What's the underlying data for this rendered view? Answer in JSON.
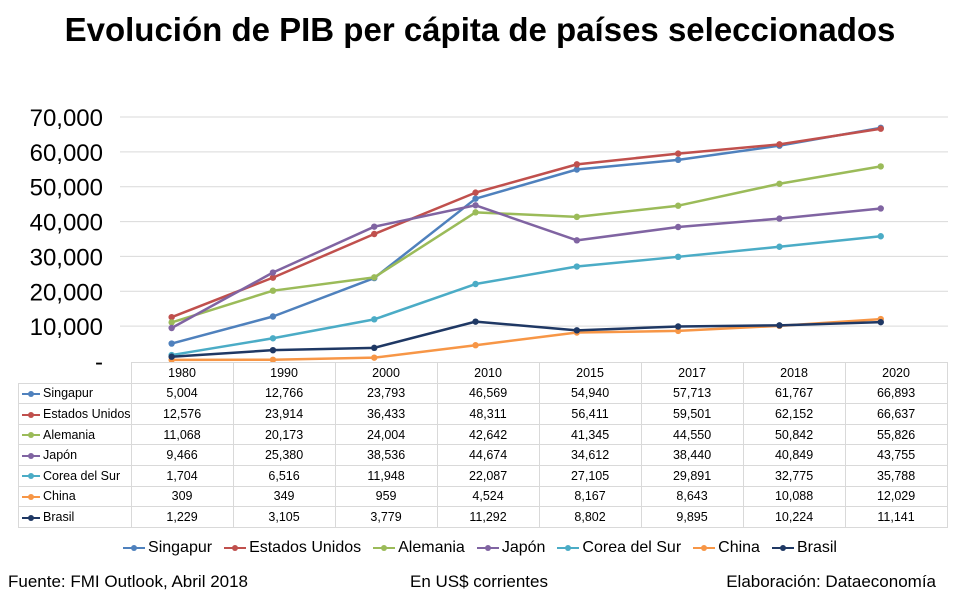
{
  "chart_data": {
    "type": "line",
    "title": "Evolución de PIB per cápita de países seleccionados",
    "categories": [
      "1980",
      "1990",
      "2000",
      "2010",
      "2015",
      "2017",
      "2018",
      "2020"
    ],
    "ylim": [
      0,
      70000
    ],
    "yticks": [
      0,
      10000,
      20000,
      30000,
      40000,
      50000,
      60000,
      70000
    ],
    "ytick_labels": [
      "-",
      "10,000",
      "20,000",
      "30,000",
      "40,000",
      "50,000",
      "60,000",
      "70,000"
    ],
    "grid": true,
    "legend_placement": "bottom",
    "series": [
      {
        "name": "Singapur",
        "color": "#4f81bd",
        "values": [
          5004,
          12766,
          23793,
          46569,
          54940,
          57713,
          61767,
          66893
        ],
        "labels": [
          "5,004",
          "12,766",
          "23,793",
          "46,569",
          "54,940",
          "57,713",
          "61,767",
          "66,893"
        ]
      },
      {
        "name": "Estados Unidos",
        "color": "#c0504d",
        "values": [
          12576,
          23914,
          36433,
          48311,
          56411,
          59501,
          62152,
          66637
        ],
        "labels": [
          "12,576",
          "23,914",
          "36,433",
          "48,311",
          "56,411",
          "59,501",
          "62,152",
          "66,637"
        ]
      },
      {
        "name": "Alemania",
        "color": "#9bbb59",
        "values": [
          11068,
          20173,
          24004,
          42642,
          41345,
          44550,
          50842,
          55826
        ],
        "labels": [
          "11,068",
          "20,173",
          "24,004",
          "42,642",
          "41,345",
          "44,550",
          "50,842",
          "55,826"
        ]
      },
      {
        "name": "Japón",
        "color": "#8064a2",
        "values": [
          9466,
          25380,
          38536,
          44674,
          34612,
          38440,
          40849,
          43755
        ],
        "labels": [
          "9,466",
          "25,380",
          "38,536",
          "44,674",
          "34,612",
          "38,440",
          "40,849",
          "43,755"
        ]
      },
      {
        "name": "Corea del Sur",
        "color": "#4bacc6",
        "values": [
          1704,
          6516,
          11948,
          22087,
          27105,
          29891,
          32775,
          35788
        ],
        "labels": [
          "1,704",
          "6,516",
          "11,948",
          "22,087",
          "27,105",
          "29,891",
          "32,775",
          "35,788"
        ]
      },
      {
        "name": "China",
        "color": "#f79646",
        "values": [
          309,
          349,
          959,
          4524,
          8167,
          8643,
          10088,
          12029
        ],
        "labels": [
          "309",
          "349",
          "959",
          "4,524",
          "8,167",
          "8,643",
          "10,088",
          "12,029"
        ]
      },
      {
        "name": "Brasil",
        "color": "#1f3864",
        "values": [
          1229,
          3105,
          3779,
          11292,
          8802,
          9895,
          10224,
          11141
        ],
        "labels": [
          "1,229",
          "3,105",
          "3,779",
          "11,292",
          "8,802",
          "9,895",
          "10,224",
          "11,141"
        ]
      }
    ]
  },
  "footer": {
    "source": "Fuente: FMI Outlook, Abril 2018",
    "units": "En US$ corrientes",
    "credit": "Elaboración: Dataeconomía"
  }
}
